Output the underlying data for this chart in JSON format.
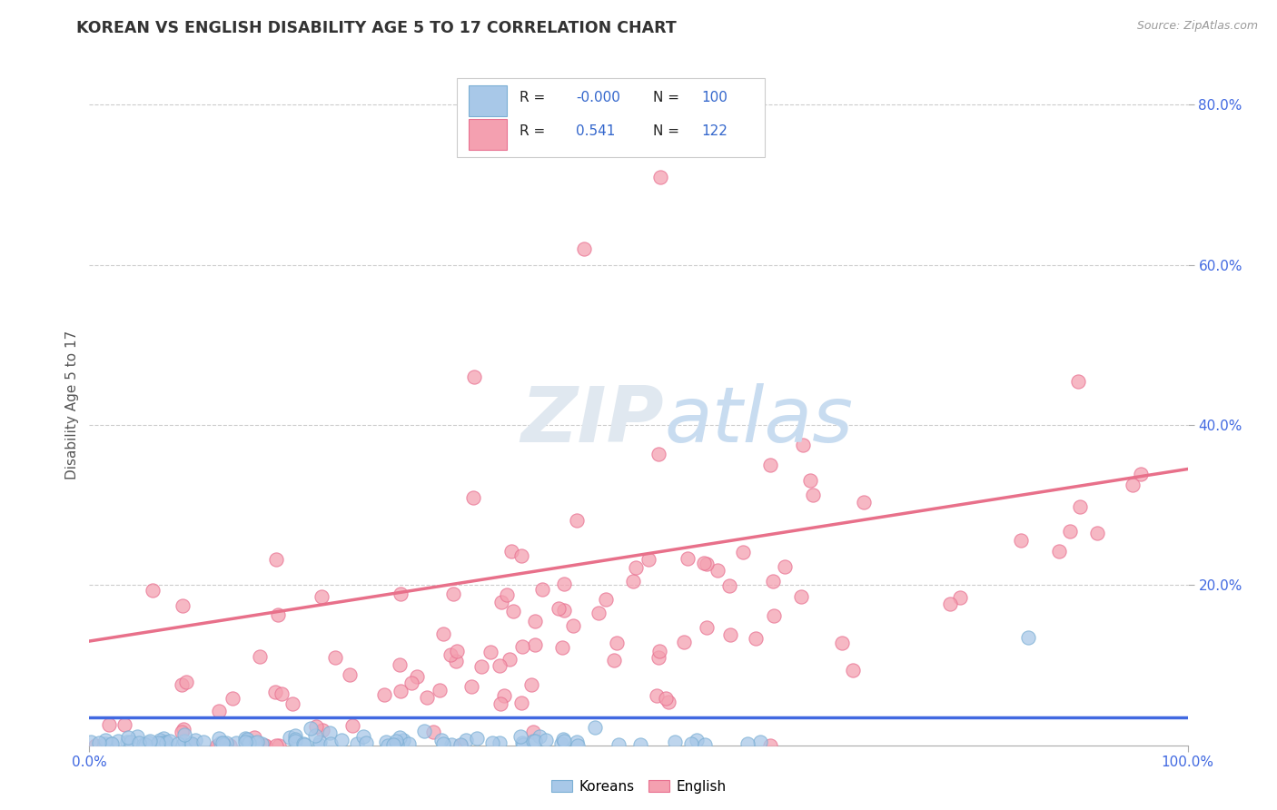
{
  "title": "KOREAN VS ENGLISH DISABILITY AGE 5 TO 17 CORRELATION CHART",
  "source_text": "Source: ZipAtlas.com",
  "ylabel": "Disability Age 5 to 17",
  "xlim": [
    0.0,
    1.0
  ],
  "ylim": [
    0.0,
    0.85
  ],
  "legend_koreans_R": "-0.000",
  "legend_koreans_N": "100",
  "legend_english_R": "0.541",
  "legend_english_N": "122",
  "korean_color": "#A8C8E8",
  "korean_edge_color": "#7BAFD4",
  "english_color": "#F4A0B0",
  "english_edge_color": "#E87090",
  "trend_korean_color": "#4169E1",
  "trend_english_color": "#E8708A",
  "background_color": "#FFFFFF",
  "grid_color": "#CCCCCC",
  "title_color": "#333333",
  "axis_label_color": "#555555",
  "tick_label_color": "#4169E1",
  "watermark_color": "#E0E8F0",
  "korean_trend_y0": 0.035,
  "korean_trend_y1": 0.035,
  "english_trend_y0": 0.13,
  "english_trend_y1": 0.345
}
